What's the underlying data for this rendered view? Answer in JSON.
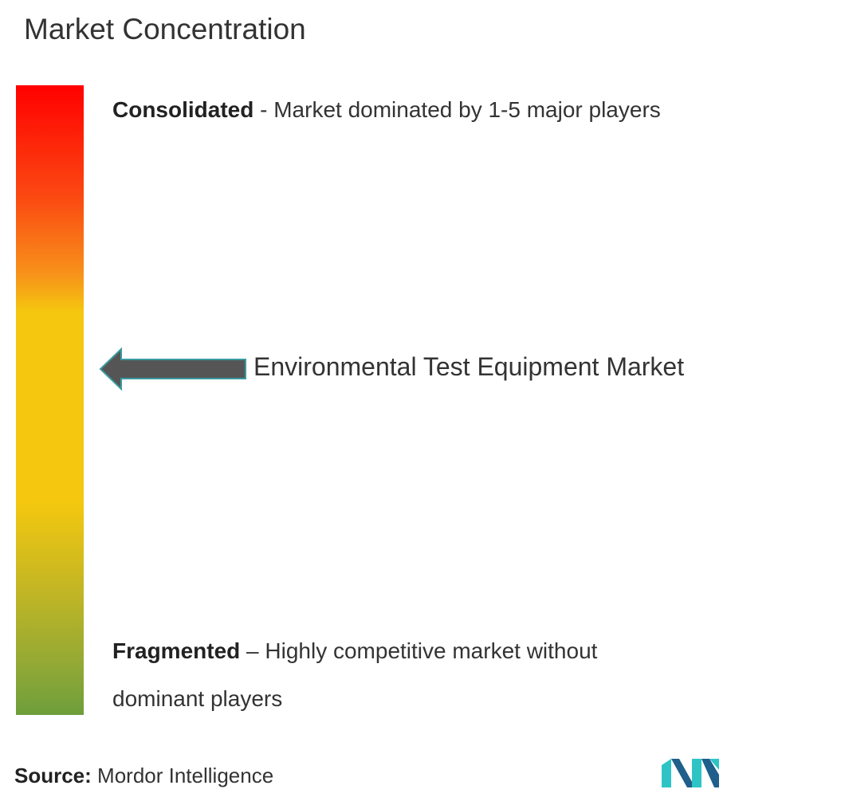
{
  "title": "Market Concentration",
  "consolidated": {
    "label": "Consolidated",
    "text": "- Market dominated by 1-5 major players"
  },
  "market": "Environmental Test Equipment Market",
  "fragmented": {
    "label": "Fragmented",
    "text": "– Highly competitive market without dominant players"
  },
  "source": {
    "label": "Source:",
    "text": "Mordor Intelligence"
  }
}
